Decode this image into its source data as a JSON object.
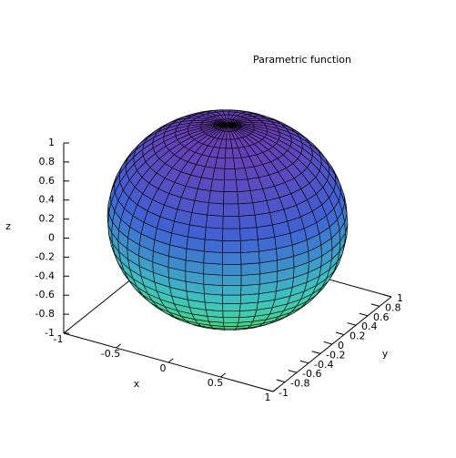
{
  "chart_data": {
    "type": "parametric-sphere",
    "title": "Parametric function",
    "xlabel": "x",
    "ylabel": "y",
    "zlabel": "z",
    "radius": 1,
    "xlim": [
      -1,
      1
    ],
    "ylim": [
      -1,
      1
    ],
    "zlim": [
      -1,
      1
    ],
    "xticks": [
      -1,
      -0.5,
      0,
      0.5,
      1
    ],
    "yticks": [
      -1,
      -0.8,
      -0.6,
      -0.4,
      -0.2,
      0,
      0.2,
      0.4,
      0.6,
      0.8,
      1
    ],
    "zticks": [
      -1,
      -0.8,
      -0.6,
      -0.4,
      -0.2,
      0,
      0.2,
      0.4,
      0.6,
      0.8,
      1
    ],
    "colors": [
      "#4fd860",
      "#3fc6c0",
      "#3f63d4",
      "#6a3cb4"
    ]
  }
}
